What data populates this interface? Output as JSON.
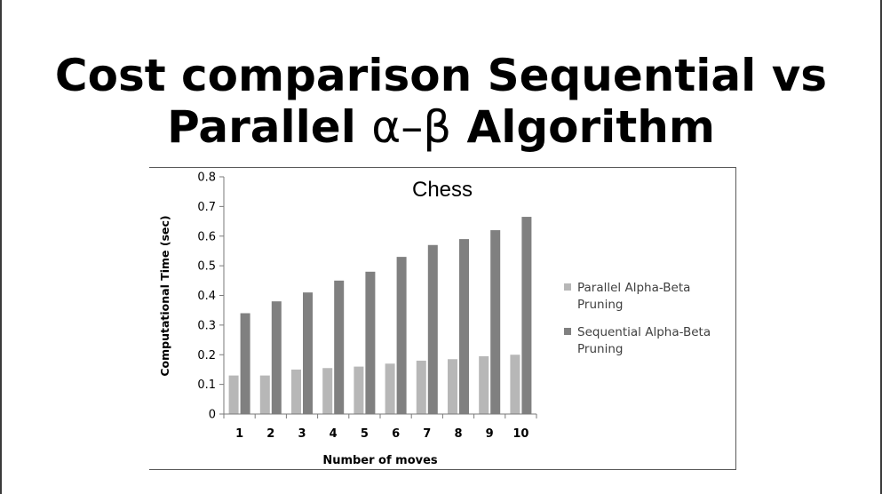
{
  "slide": {
    "title_line1": "Cost comparison Sequential vs",
    "title_line2_a": "Parallel ",
    "title_line2_sym": "α–β",
    "title_line2_b": " Algorithm"
  },
  "colors": {
    "parallel": "#b7b7b7",
    "sequential": "#808080",
    "axis": "#7a7a7a",
    "border": "#5a5a5a"
  },
  "chart_data": {
    "type": "bar",
    "title": "Chess",
    "xlabel": "Number of moves",
    "ylabel": "Computational Time (sec)",
    "categories": [
      "1",
      "2",
      "3",
      "4",
      "5",
      "6",
      "7",
      "8",
      "9",
      "10"
    ],
    "ylim": [
      0,
      0.8
    ],
    "yticks": [
      "0",
      "0.1",
      "0.2",
      "0.3",
      "0.4",
      "0.5",
      "0.6",
      "0.7",
      "0.8"
    ],
    "legend_position": "right",
    "series": [
      {
        "name_line1": "Parallel Alpha-Beta",
        "name_line2": "Pruning",
        "values": [
          0.13,
          0.13,
          0.15,
          0.155,
          0.16,
          0.17,
          0.18,
          0.185,
          0.195,
          0.2
        ]
      },
      {
        "name_line1": "Sequential Alpha-Beta",
        "name_line2": "Pruning",
        "values": [
          0.34,
          0.38,
          0.41,
          0.45,
          0.48,
          0.53,
          0.57,
          0.59,
          0.62,
          0.665
        ]
      }
    ]
  }
}
